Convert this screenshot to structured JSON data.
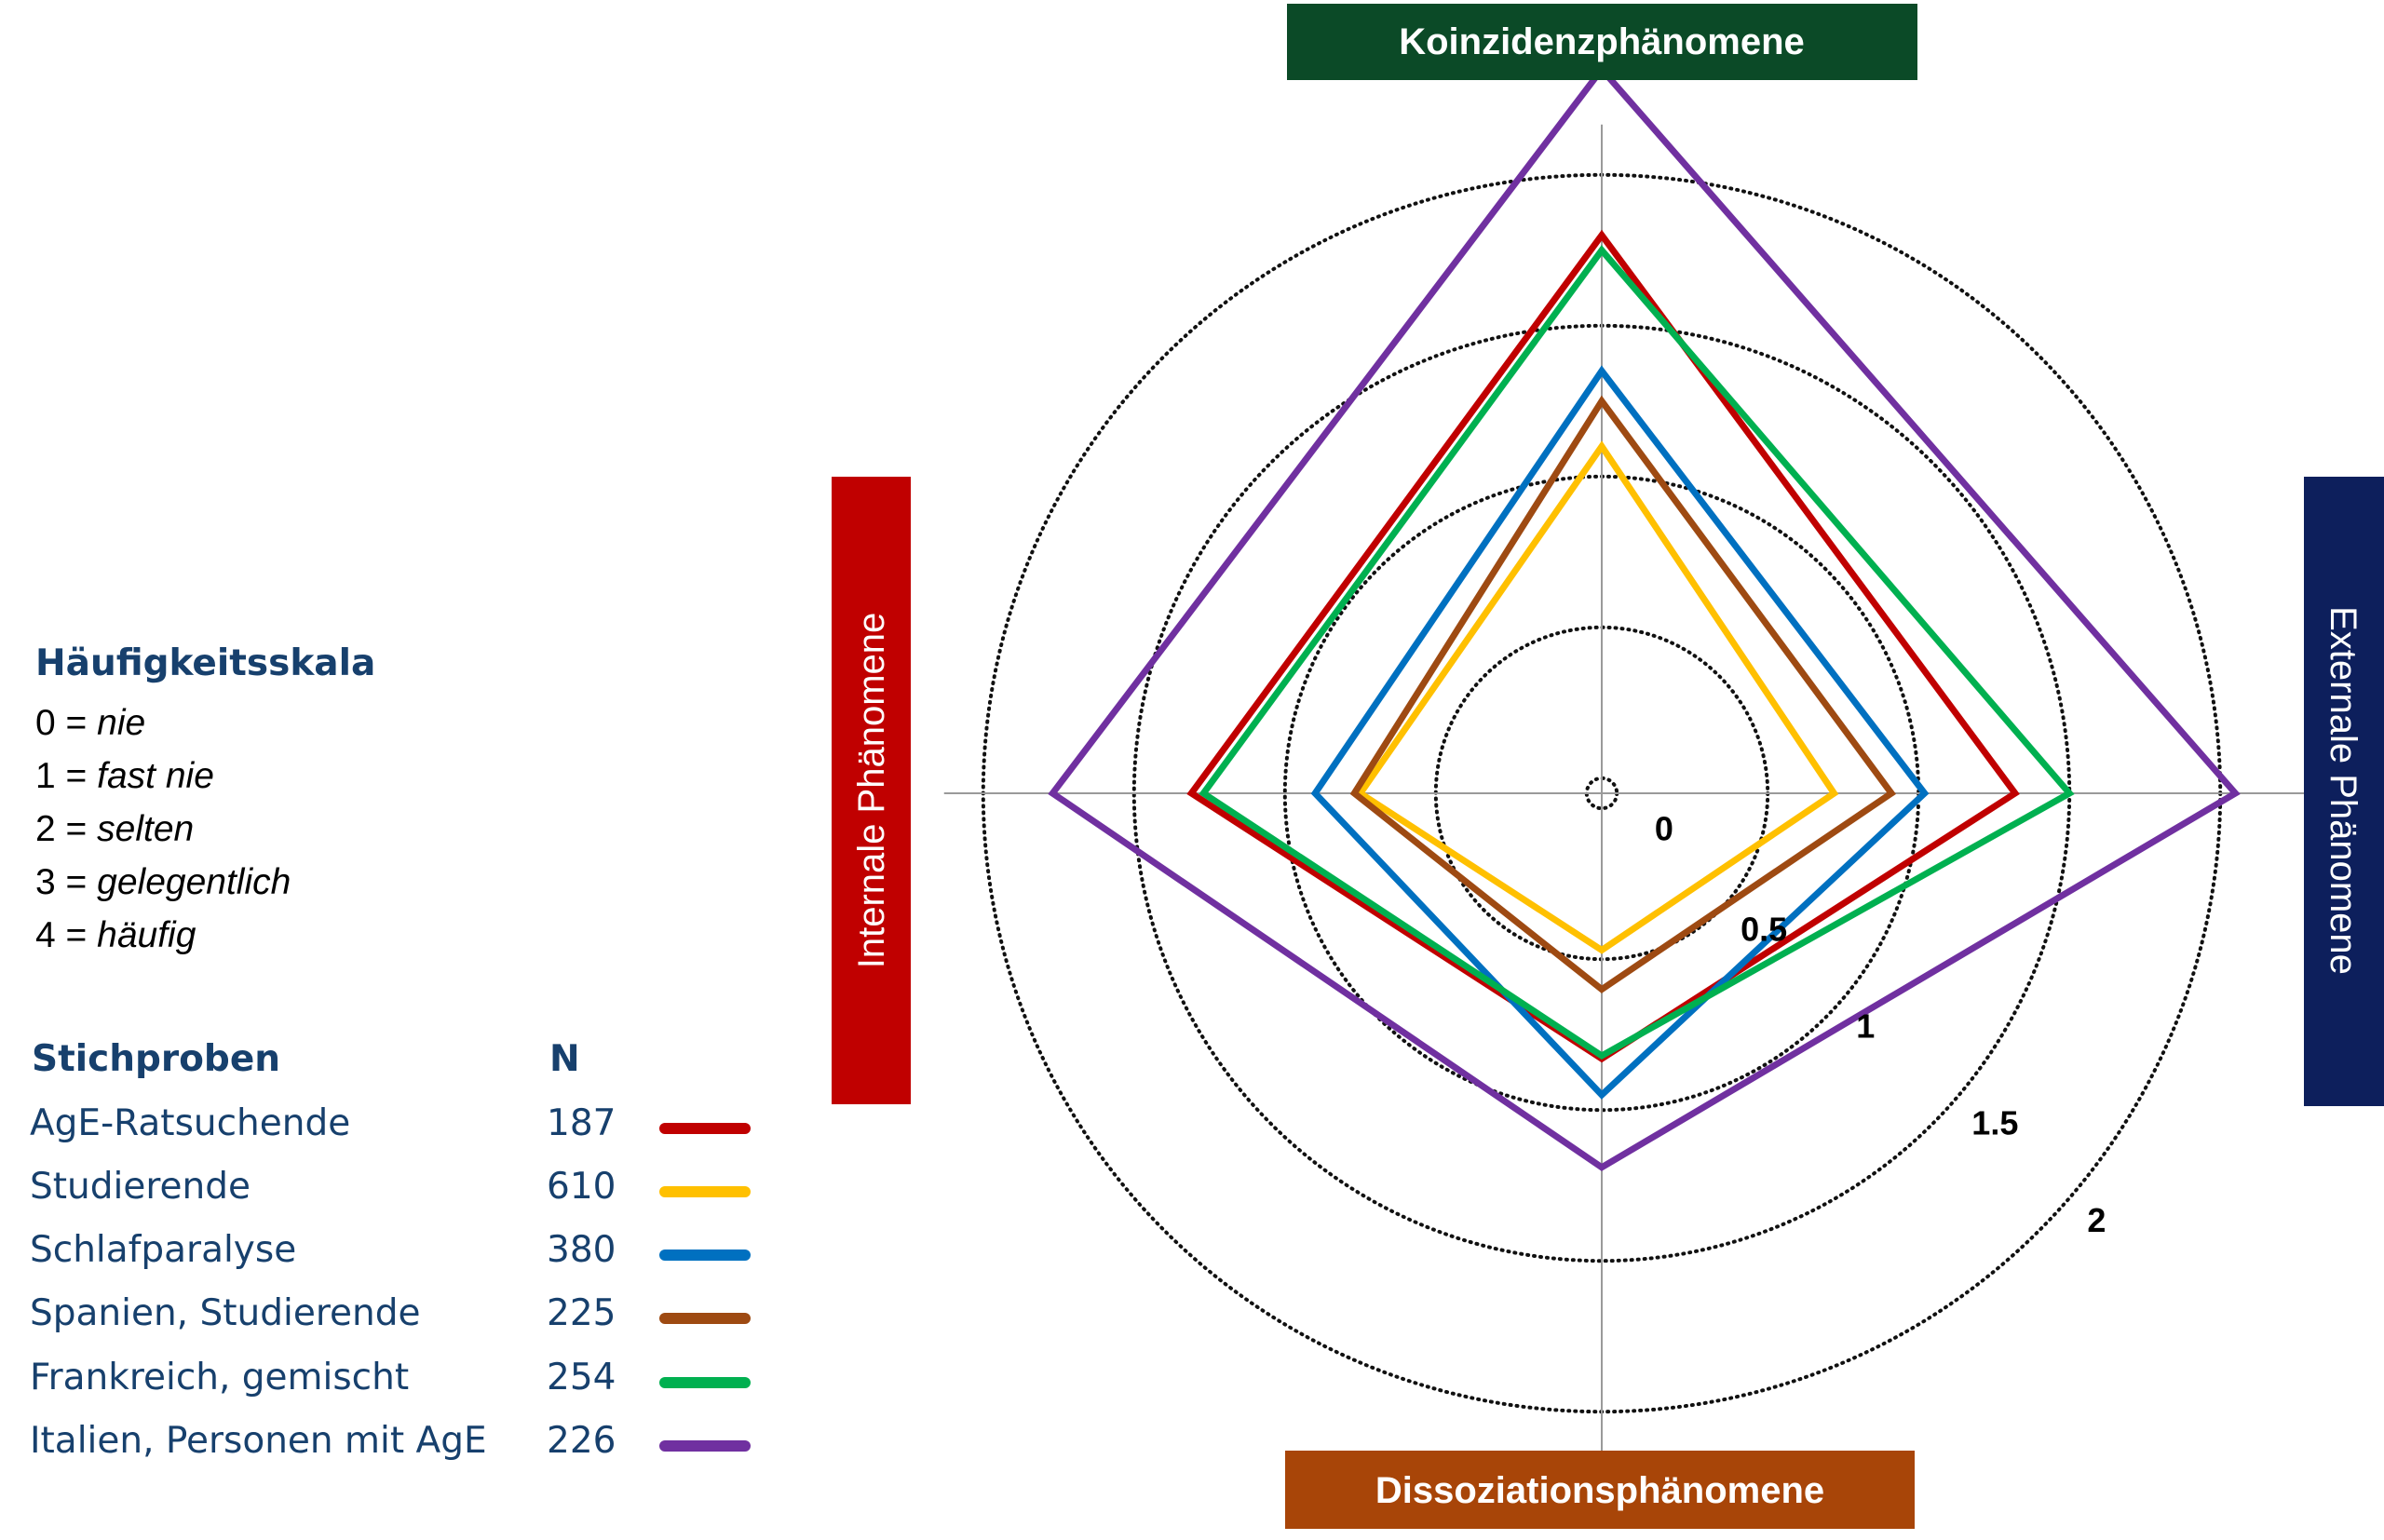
{
  "scale": {
    "title": "Häufigkeitsskala",
    "items": [
      {
        "num": "0 =",
        "word": "nie"
      },
      {
        "num": "1 =",
        "word": "fast nie"
      },
      {
        "num": "2 =",
        "word": "selten"
      },
      {
        "num": "3 =",
        "word": "gelegentlich"
      },
      {
        "num": "4 =",
        "word": "häufig"
      }
    ]
  },
  "samples_header": {
    "label": "Stichproben",
    "n": "N"
  },
  "colors": {
    "koinzidenz": "#0b4a27",
    "external": "#0d1f5c",
    "internal": "#c00000",
    "dissoziation": "#a84508"
  },
  "chart_data": {
    "type": "radar",
    "axes": [
      "Koinzidenzphänomene",
      "Externale Phänomene",
      "Dissoziationsphänomene",
      "Internale Phänomene"
    ],
    "rings": [
      0,
      0.5,
      1,
      1.5,
      2
    ],
    "ring_labels": [
      "0",
      "0.5",
      "1",
      "1.5",
      "2"
    ],
    "range": [
      0,
      2
    ],
    "series": [
      {
        "name": "AgE-Ratsuchende",
        "n": "187",
        "color": "#c00000",
        "values": [
          1.8,
          1.32,
          0.83,
          1.31
        ]
      },
      {
        "name": "Studierende",
        "n": "610",
        "color": "#ffc000",
        "values": [
          1.1,
          0.72,
          0.47,
          0.75
        ]
      },
      {
        "name": "Schlafparalyse",
        "n": "380",
        "color": "#0070c0",
        "values": [
          1.35,
          1.02,
          0.95,
          0.9
        ]
      },
      {
        "name": "Spanien, Studierende",
        "n": "225",
        "color": "#9e4a12",
        "values": [
          1.25,
          0.91,
          0.6,
          0.77
        ]
      },
      {
        "name": "Frankreich, gemischt",
        "n": "254",
        "color": "#00b050",
        "values": [
          1.75,
          1.5,
          0.82,
          1.27
        ]
      },
      {
        "name": "Italien, Personen mit AgE",
        "n": "226",
        "color": "#7030a0",
        "values": [
          2.35,
          2.05,
          1.19,
          1.77
        ]
      }
    ]
  }
}
